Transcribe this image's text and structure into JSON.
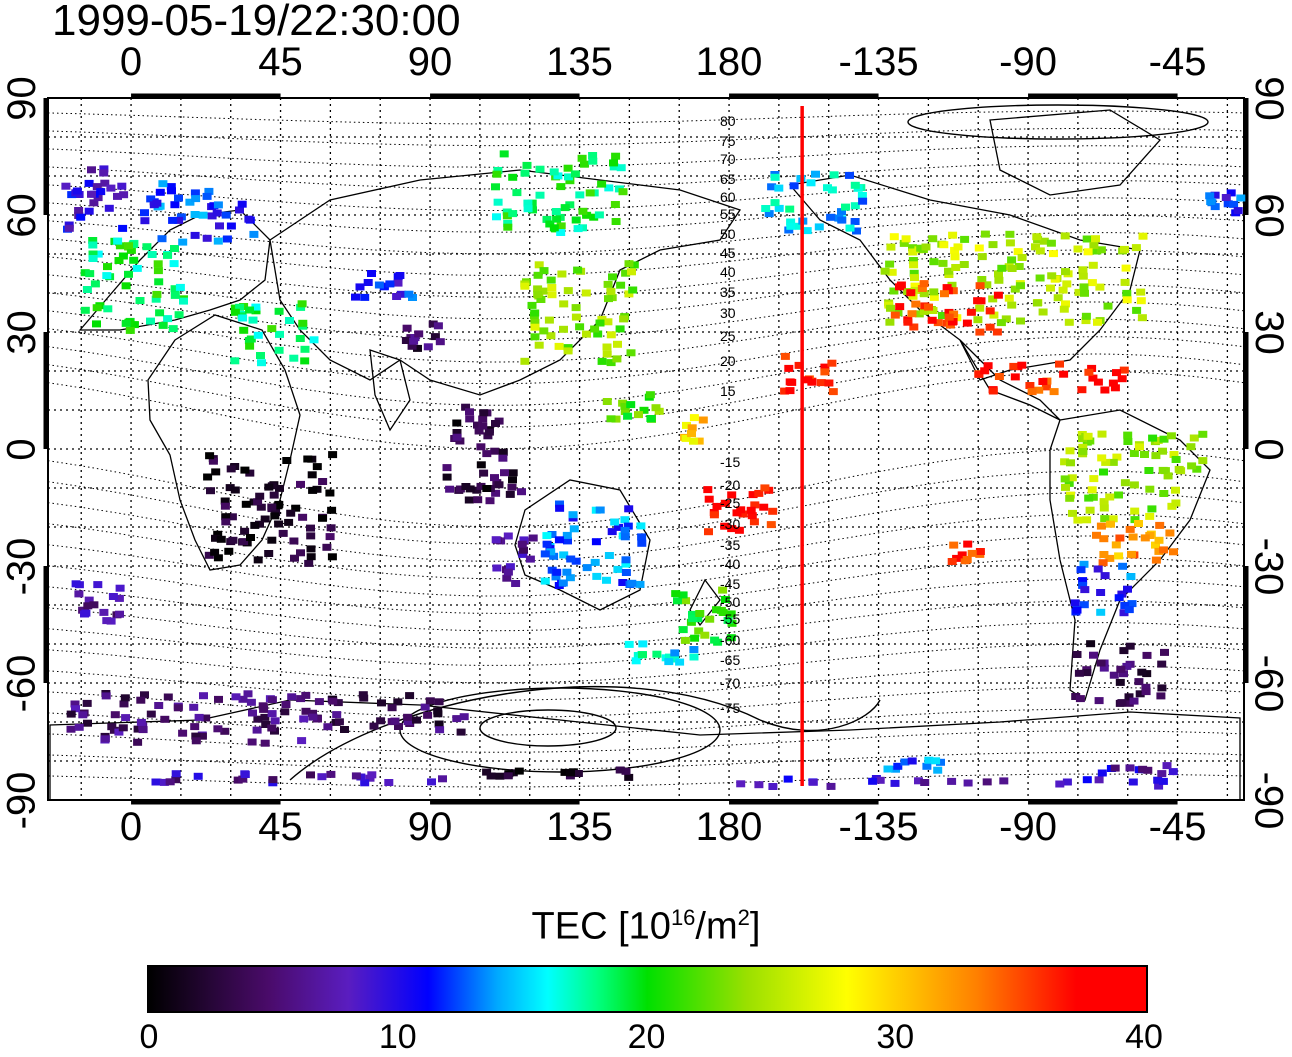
{
  "timestamp": "1999-05-19/22:30:00",
  "axes": {
    "lon_labels": [
      "0",
      "45",
      "90",
      "135",
      "180",
      "-135",
      "-90",
      "-45"
    ],
    "lat_labels": [
      "90",
      "60",
      "30",
      "0",
      "-30",
      "-60",
      "-90"
    ],
    "contour_labels_north": [
      "80",
      "75",
      "70",
      "65",
      "60",
      "55",
      "50",
      "45",
      "40",
      "35",
      "30",
      "25",
      "20",
      "15"
    ],
    "contour_labels_south": [
      "-15",
      "-20",
      "-25",
      "-30",
      "-35",
      "-40",
      "-45",
      "-50",
      "-55",
      "-60",
      "-65",
      "-70",
      "-75"
    ]
  },
  "colorbar": {
    "title_prefix": "TEC  [10",
    "title_sup1": "16",
    "title_mid": "/m",
    "title_sup2": "2",
    "title_suffix": "]",
    "ticks": [
      "0",
      "10",
      "20",
      "30",
      "40"
    ],
    "range": [
      0,
      40
    ]
  },
  "map": {
    "terminator_lon": 202,
    "terminator_color": "#ff0000",
    "lon_range": [
      -25,
      335
    ],
    "lat_range": [
      -90,
      90
    ],
    "grid": true
  }
}
